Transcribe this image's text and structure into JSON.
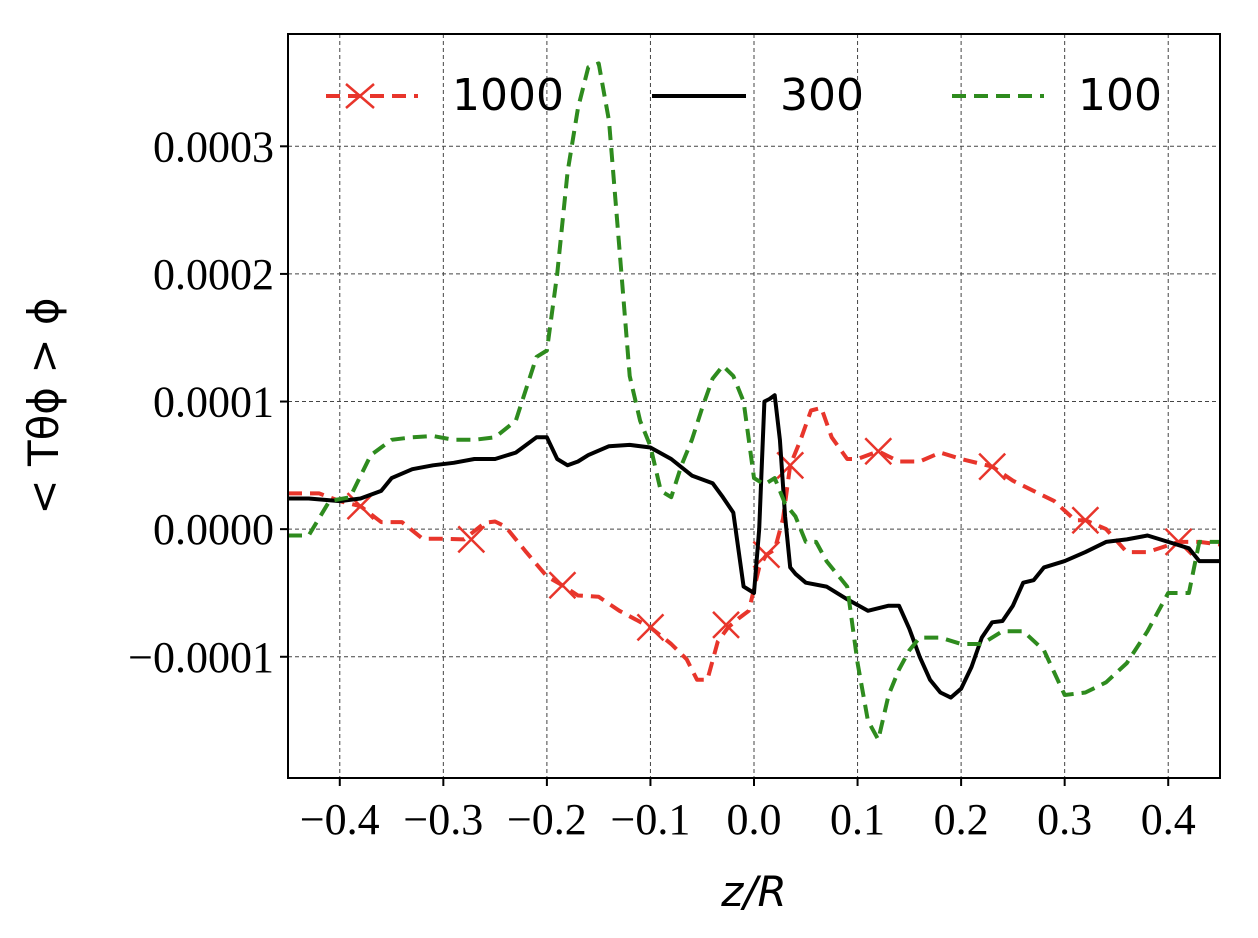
{
  "chart_data": {
    "type": "line",
    "xlabel": "z/R",
    "ylabel": "< Tθϕ > ϕ",
    "xlim": [
      -0.45,
      0.45
    ],
    "ylim": [
      -0.000195,
      0.000388
    ],
    "xticks": [
      -0.4,
      -0.3,
      -0.2,
      -0.1,
      0.0,
      0.1,
      0.2,
      0.3,
      0.4
    ],
    "xtick_labels": [
      "−0.4",
      "−0.3",
      "−0.2",
      "−0.1",
      "0.0",
      "0.1",
      "0.2",
      "0.3",
      "0.4"
    ],
    "yticks": [
      -0.0001,
      0.0,
      0.0001,
      0.0002,
      0.0003
    ],
    "ytick_labels": [
      "−0.0001",
      "0.0000",
      "0.0001",
      "0.0002",
      "0.0003"
    ],
    "grid": true,
    "legend_position": "top",
    "series": [
      {
        "name": "1000",
        "color": "#e8352b",
        "style": "dashed",
        "marker": "x",
        "x": [
          -0.45,
          -0.42,
          -0.4,
          -0.38,
          -0.36,
          -0.34,
          -0.32,
          -0.3,
          -0.28,
          -0.26,
          -0.25,
          -0.24,
          -0.22,
          -0.2,
          -0.185,
          -0.17,
          -0.15,
          -0.13,
          -0.1,
          -0.08,
          -0.065,
          -0.055,
          -0.045,
          -0.035,
          -0.025,
          -0.015,
          -0.005,
          0.005,
          0.012,
          0.02,
          0.028,
          0.035,
          0.045,
          0.055,
          0.065,
          0.075,
          0.09,
          0.1,
          0.12,
          0.14,
          0.16,
          0.18,
          0.2,
          0.23,
          0.25,
          0.27,
          0.29,
          0.31,
          0.32,
          0.34,
          0.36,
          0.38,
          0.41,
          0.43,
          0.45
        ],
        "y": [
          2.8e-05,
          2.8e-05,
          2.2e-05,
          1.8e-05,
          5.5e-06,
          5.5e-06,
          -7.5e-06,
          -7.5e-06,
          -8e-06,
          5e-06,
          6e-06,
          2e-06,
          -1.8e-05,
          -3.7e-05,
          -4.4e-05,
          -5.2e-05,
          -5.3e-05,
          -6.4e-05,
          -7.7e-05,
          -9e-05,
          -0.000102,
          -0.000118,
          -0.000118,
          -8.8e-05,
          -7.7e-05,
          -7e-05,
          -6.4e-05,
          -3e-05,
          -2e-05,
          -1.6e-05,
          8e-06,
          5e-05,
          7e-05,
          9.3e-05,
          9.5e-05,
          7.2e-05,
          5.5e-05,
          5.5e-05,
          6.1e-05,
          5.3e-05,
          5.3e-05,
          6e-05,
          5.5e-05,
          4.9e-05,
          3.8e-05,
          3e-05,
          2.2e-05,
          7e-06,
          7e-06,
          0.0,
          -1.8e-05,
          -1.8e-05,
          -1e-05,
          -1e-05,
          -1.2e-05
        ],
        "marker_x": [
          -0.38,
          -0.273,
          -0.185,
          -0.1,
          -0.027,
          0.012,
          0.035,
          0.12,
          0.23,
          0.32,
          0.41
        ],
        "marker_y": [
          1.8e-05,
          -8e-06,
          -4.4e-05,
          -7.7e-05,
          -7.5e-05,
          -2e-05,
          5e-05,
          6.1e-05,
          4.9e-05,
          7e-06,
          -1e-05
        ]
      },
      {
        "name": "300",
        "color": "#000000",
        "style": "solid",
        "x": [
          -0.45,
          -0.43,
          -0.4,
          -0.38,
          -0.36,
          -0.35,
          -0.33,
          -0.31,
          -0.29,
          -0.27,
          -0.25,
          -0.23,
          -0.21,
          -0.2,
          -0.19,
          -0.18,
          -0.17,
          -0.16,
          -0.14,
          -0.12,
          -0.1,
          -0.08,
          -0.06,
          -0.04,
          -0.03,
          -0.02,
          -0.01,
          0.0,
          0.005,
          0.01,
          0.015,
          0.02,
          0.025,
          0.03,
          0.035,
          0.04,
          0.05,
          0.07,
          0.09,
          0.11,
          0.13,
          0.14,
          0.15,
          0.16,
          0.17,
          0.18,
          0.19,
          0.2,
          0.21,
          0.22,
          0.23,
          0.24,
          0.25,
          0.26,
          0.27,
          0.28,
          0.3,
          0.32,
          0.34,
          0.36,
          0.38,
          0.4,
          0.42,
          0.43,
          0.45
        ],
        "y": [
          2.4e-05,
          2.4e-05,
          2.2e-05,
          2.4e-05,
          3e-05,
          4e-05,
          4.7e-05,
          5e-05,
          5.2e-05,
          5.5e-05,
          5.5e-05,
          6e-05,
          7.2e-05,
          7.2e-05,
          5.5e-05,
          5e-05,
          5.3e-05,
          5.8e-05,
          6.5e-05,
          6.6e-05,
          6.4e-05,
          5.5e-05,
          4.2e-05,
          3.6e-05,
          2.5e-05,
          1.3e-05,
          -4.5e-05,
          -5e-05,
          0.0,
          0.0001,
          0.000102,
          0.000105,
          7e-05,
          1e-05,
          -3e-05,
          -3.5e-05,
          -4.2e-05,
          -4.5e-05,
          -5.5e-05,
          -6.4e-05,
          -6e-05,
          -6e-05,
          -7.8e-05,
          -0.0001,
          -0.000118,
          -0.000128,
          -0.000132,
          -0.000125,
          -0.000108,
          -8.5e-05,
          -7.3e-05,
          -7.2e-05,
          -6e-05,
          -4.2e-05,
          -4e-05,
          -3e-05,
          -2.5e-05,
          -1.8e-05,
          -1e-05,
          -8e-06,
          -5e-06,
          -1e-05,
          -1.5e-05,
          -2.5e-05,
          -2.5e-05
        ]
      },
      {
        "name": "100",
        "color": "#2e8b1e",
        "style": "dashed",
        "x": [
          -0.45,
          -0.43,
          -0.41,
          -0.39,
          -0.37,
          -0.35,
          -0.33,
          -0.31,
          -0.29,
          -0.27,
          -0.25,
          -0.23,
          -0.21,
          -0.2,
          -0.19,
          -0.18,
          -0.17,
          -0.16,
          -0.15,
          -0.14,
          -0.13,
          -0.12,
          -0.11,
          -0.1,
          -0.09,
          -0.08,
          -0.07,
          -0.06,
          -0.05,
          -0.04,
          -0.03,
          -0.02,
          -0.01,
          0.0,
          0.01,
          0.02,
          0.03,
          0.04,
          0.05,
          0.06,
          0.07,
          0.08,
          0.09,
          0.1,
          0.11,
          0.12,
          0.13,
          0.14,
          0.15,
          0.16,
          0.17,
          0.18,
          0.2,
          0.22,
          0.24,
          0.26,
          0.28,
          0.3,
          0.32,
          0.34,
          0.36,
          0.38,
          0.4,
          0.42,
          0.43,
          0.45
        ],
        "y": [
          -5e-06,
          -5e-06,
          2.2e-05,
          2.5e-05,
          5.8e-05,
          7e-05,
          7.2e-05,
          7.3e-05,
          7e-05,
          7e-05,
          7.2e-05,
          8.5e-05,
          0.000135,
          0.00014,
          0.0002,
          0.00028,
          0.00033,
          0.000362,
          0.000365,
          0.00032,
          0.00022,
          0.00012,
          8.5e-05,
          6.5e-05,
          3e-05,
          2.5e-05,
          5e-05,
          7e-05,
          9.5e-05,
          0.000118,
          0.000128,
          0.00012,
          0.0001,
          4e-05,
          3.5e-05,
          4e-05,
          2e-05,
          1e-05,
          -1e-05,
          -1e-05,
          -2.5e-05,
          -3.5e-05,
          -4.5e-05,
          -0.000105,
          -0.00015,
          -0.000165,
          -0.00013,
          -0.00011,
          -9.5e-05,
          -8.5e-05,
          -8.5e-05,
          -8.5e-05,
          -9e-05,
          -9e-05,
          -8e-05,
          -8e-05,
          -9.5e-05,
          -0.00013,
          -0.000128,
          -0.00012,
          -0.000105,
          -8e-05,
          -5e-05,
          -5e-05,
          -1e-05,
          -1e-05
        ]
      }
    ]
  }
}
